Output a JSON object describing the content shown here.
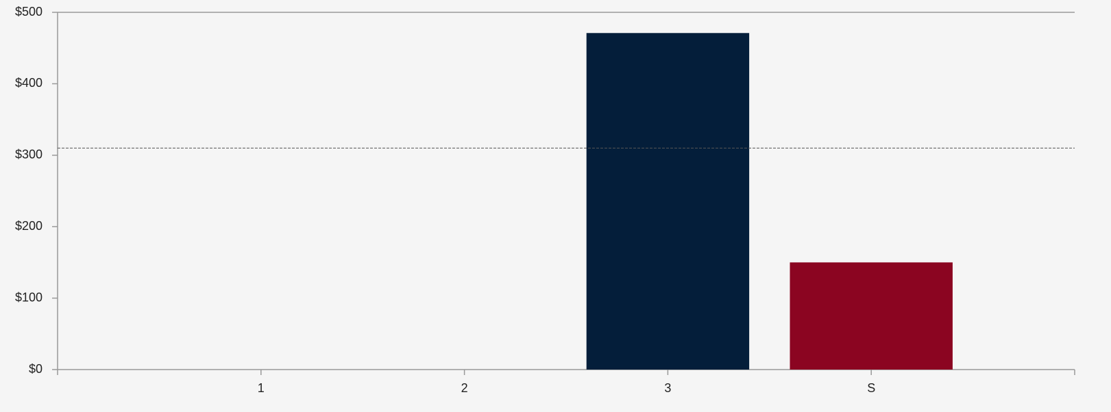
{
  "chart_data": {
    "type": "bar",
    "categories": [
      "1",
      "2",
      "3",
      "S"
    ],
    "values": [
      0,
      0,
      471,
      150
    ],
    "colors": [
      "#041e3a",
      "#041e3a",
      "#041e3a",
      "#8b0521"
    ],
    "ylim": [
      0,
      500
    ],
    "yticks": [
      {
        "value": 0,
        "label": "$0"
      },
      {
        "value": 100,
        "label": "$100"
      },
      {
        "value": 200,
        "label": "$200"
      },
      {
        "value": 300,
        "label": "$300"
      },
      {
        "value": 400,
        "label": "$400"
      },
      {
        "value": 500,
        "label": "$500"
      }
    ],
    "reference_line": 310,
    "grid": false
  }
}
